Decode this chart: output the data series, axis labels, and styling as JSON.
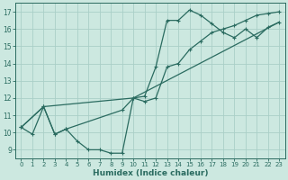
{
  "background_color": "#cce8e0",
  "grid_color": "#aacfc8",
  "line_color": "#2a6b60",
  "xlabel": "Humidex (Indice chaleur)",
  "xlim": [
    -0.5,
    23.5
  ],
  "ylim": [
    8.5,
    17.5
  ],
  "xticks": [
    0,
    1,
    2,
    3,
    4,
    5,
    6,
    7,
    8,
    9,
    10,
    11,
    12,
    13,
    14,
    15,
    16,
    17,
    18,
    19,
    20,
    21,
    22,
    23
  ],
  "yticks": [
    9,
    10,
    11,
    12,
    13,
    14,
    15,
    16,
    17
  ],
  "series1_x": [
    0,
    1,
    2,
    3,
    4,
    5,
    6,
    7,
    8,
    9,
    10,
    11,
    12,
    13,
    14,
    15,
    16,
    17,
    18,
    19,
    20,
    21,
    22,
    23
  ],
  "series1_y": [
    10.3,
    9.9,
    11.5,
    9.9,
    10.2,
    9.5,
    9.0,
    9.0,
    8.8,
    8.8,
    12.0,
    12.1,
    13.8,
    16.5,
    16.5,
    17.1,
    16.8,
    16.3,
    15.8,
    15.5,
    16.0,
    15.5,
    16.1,
    16.4
  ],
  "series2_x": [
    0,
    2,
    3,
    4,
    9,
    10,
    11,
    12,
    13,
    14,
    15,
    16,
    17,
    18,
    19,
    20,
    21,
    22,
    23
  ],
  "series2_y": [
    10.3,
    11.5,
    9.9,
    10.2,
    11.3,
    12.0,
    11.8,
    12.0,
    13.8,
    14.0,
    14.8,
    15.3,
    15.8,
    16.0,
    16.2,
    16.5,
    16.8,
    16.9,
    17.0
  ],
  "series3_x": [
    0,
    2,
    10,
    23
  ],
  "series3_y": [
    10.3,
    11.5,
    12.0,
    16.4
  ]
}
